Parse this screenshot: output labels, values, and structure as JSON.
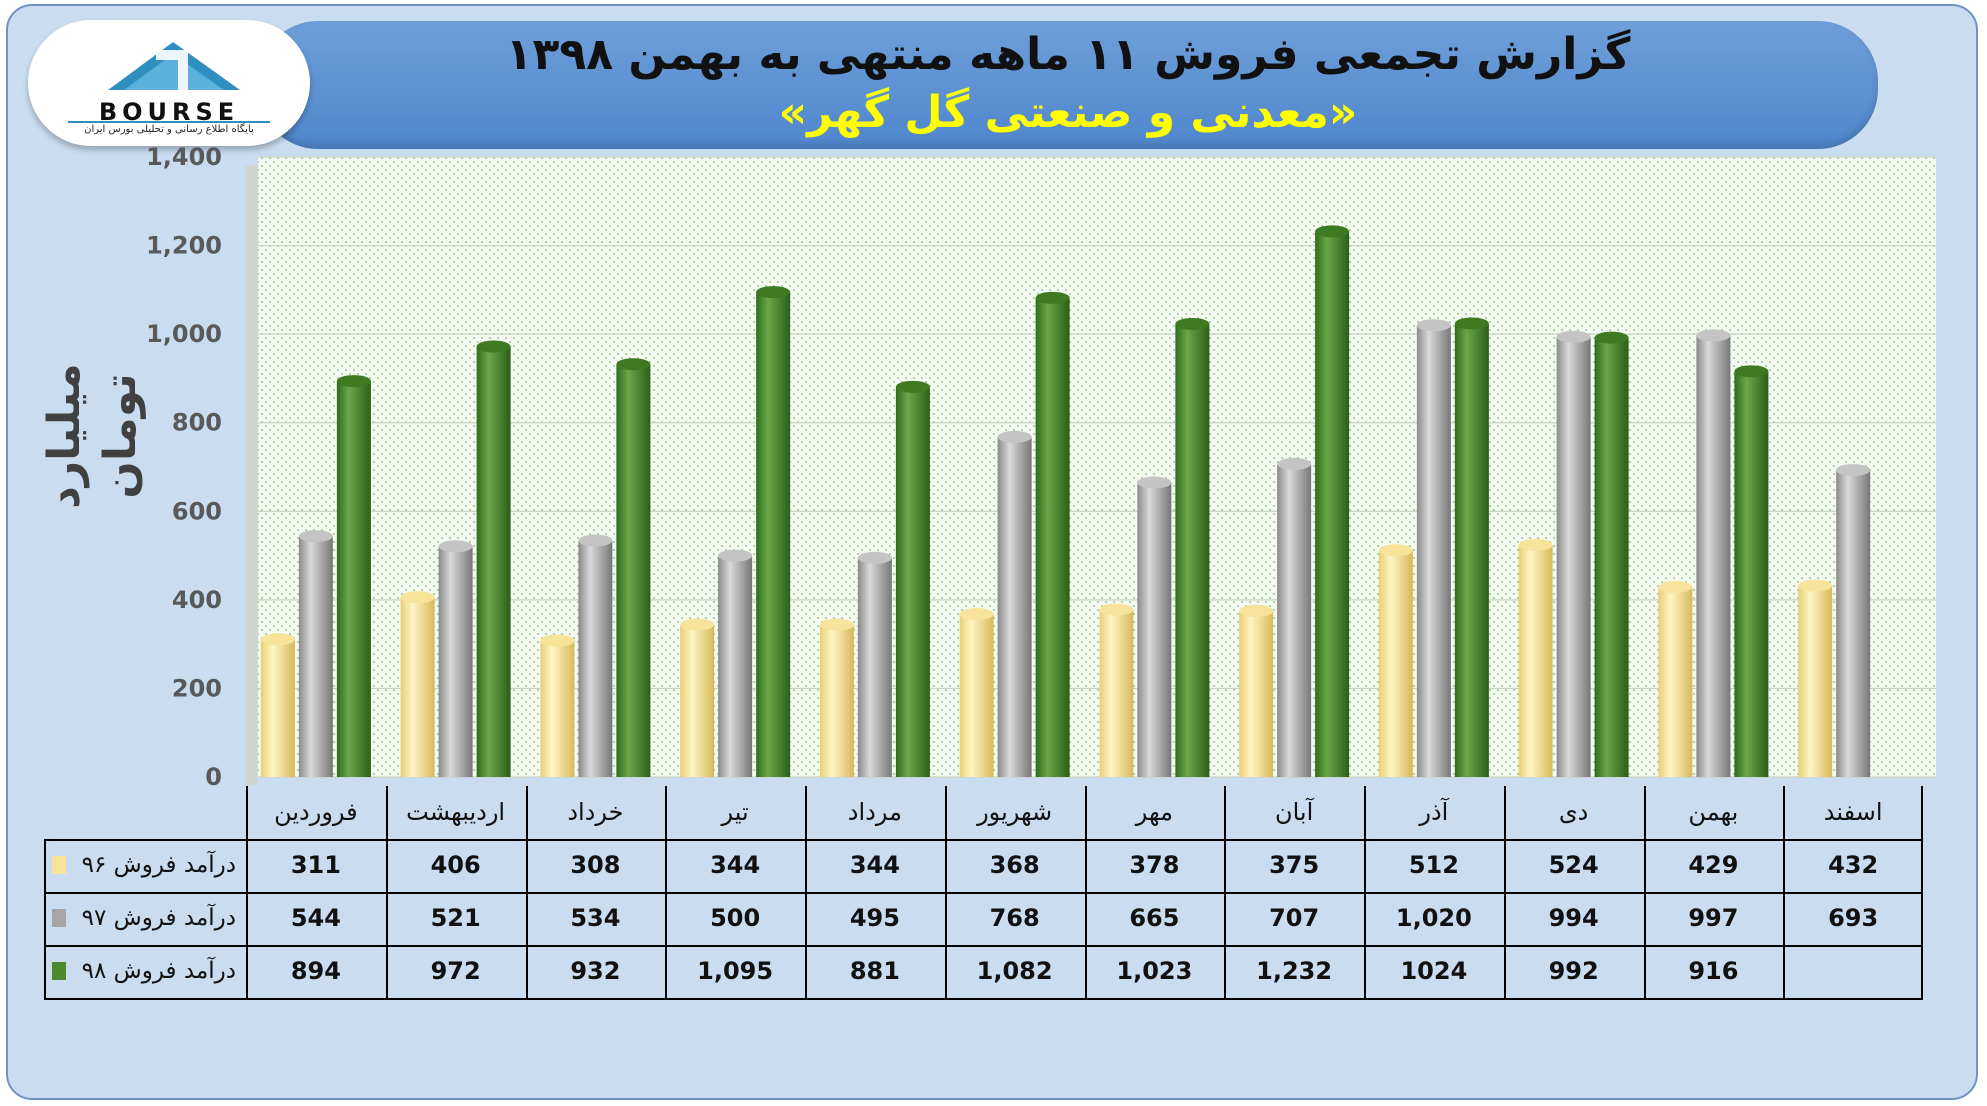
{
  "header": {
    "title": "گزارش تجمعی فروش ۱۱ ماهه منتهی به بهمن ۱۳۹۸",
    "subtitle": "«معدنی و صنعتی گل گهر»"
  },
  "logo": {
    "brand": "BOURSE",
    "tagline": "پایگاه اطلاع رسانی و تحلیلی بورس ایران"
  },
  "colors": {
    "series_96": "#f7e49a",
    "series_97": "#a6a6a6",
    "series_98": "#4d8a2e",
    "plot_bg": "#eef6ea",
    "frame_bg": "#c9dcf0",
    "banner": "#5b8fd4",
    "subtitle": "#ffff00"
  },
  "chart_data": {
    "type": "bar",
    "title": "گزارش تجمعی فروش ۱۱ ماهه منتهی به بهمن ۱۳۹۸",
    "subtitle": "«معدنی و صنعتی گل گهر»",
    "ylabel": "میلیارد تومان",
    "ylim": [
      0,
      1400
    ],
    "yticks": [
      "0",
      "200",
      "400",
      "600",
      "800",
      "1,000",
      "1,200",
      "1,400"
    ],
    "grid": true,
    "categories": [
      "فروردین",
      "اردیبهشت",
      "خرداد",
      "تیر",
      "مرداد",
      "شهریور",
      "مهر",
      "آبان",
      "آذر",
      "دی",
      "بهمن",
      "اسفند"
    ],
    "series": [
      {
        "name": "درآمد فروش ۹۶",
        "values": [
          311,
          406,
          308,
          344,
          344,
          368,
          378,
          375,
          512,
          524,
          429,
          432
        ],
        "labels": [
          "311",
          "406",
          "308",
          "344",
          "344",
          "368",
          "378",
          "375",
          "512",
          "524",
          "429",
          "432"
        ]
      },
      {
        "name": "درآمد فروش ۹۷",
        "values": [
          544,
          521,
          534,
          500,
          495,
          768,
          665,
          707,
          1020,
          994,
          997,
          693
        ],
        "labels": [
          "544",
          "521",
          "534",
          "500",
          "495",
          "768",
          "665",
          "707",
          "1,020",
          "994",
          "997",
          "693"
        ]
      },
      {
        "name": "درآمد فروش ۹۸",
        "values": [
          894,
          972,
          932,
          1095,
          881,
          1082,
          1023,
          1232,
          1024,
          992,
          916,
          null
        ],
        "labels": [
          "894",
          "972",
          "932",
          "1,095",
          "881",
          "1,082",
          "1,023",
          "1,232",
          "1024",
          "992",
          "916",
          ""
        ]
      }
    ]
  }
}
